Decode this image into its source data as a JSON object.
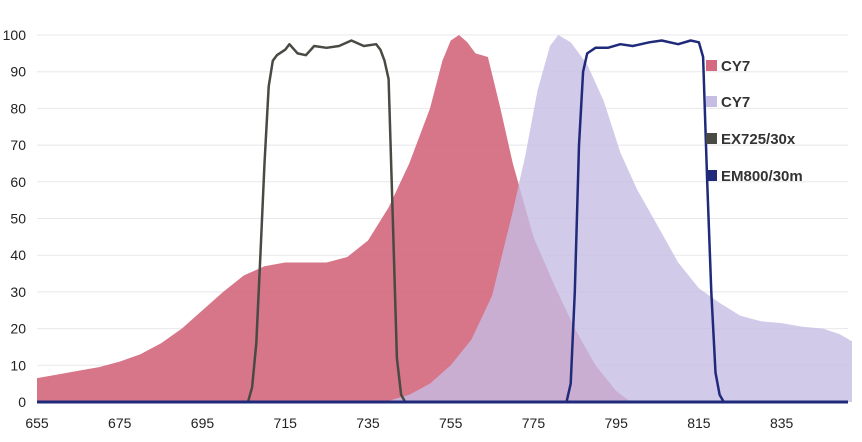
{
  "chart_data": {
    "type": "area",
    "title": "",
    "xlabel": "",
    "ylabel": "",
    "xlim": [
      655,
      852
    ],
    "ylim": [
      0,
      100
    ],
    "x_ticks": [
      655,
      675,
      695,
      715,
      735,
      755,
      775,
      795,
      815,
      835
    ],
    "y_ticks": [
      0,
      10,
      20,
      30,
      40,
      50,
      60,
      70,
      80,
      90,
      100
    ],
    "grid": "horizontal",
    "legend_position": "right",
    "series": [
      {
        "name": "CY7",
        "style": "filled-area",
        "color": "#d4697f",
        "points": [
          [
            655,
            6.5
          ],
          [
            660,
            7.5
          ],
          [
            665,
            8.5
          ],
          [
            670,
            9.5
          ],
          [
            675,
            11
          ],
          [
            680,
            13
          ],
          [
            685,
            16
          ],
          [
            690,
            20
          ],
          [
            695,
            25
          ],
          [
            700,
            30
          ],
          [
            705,
            34.5
          ],
          [
            710,
            37
          ],
          [
            715,
            38
          ],
          [
            720,
            38
          ],
          [
            725,
            38
          ],
          [
            730,
            39.5
          ],
          [
            735,
            44
          ],
          [
            740,
            53
          ],
          [
            745,
            65
          ],
          [
            750,
            80
          ],
          [
            753,
            93
          ],
          [
            755,
            98.5
          ],
          [
            757,
            100
          ],
          [
            759,
            98
          ],
          [
            761,
            95
          ],
          [
            764,
            94
          ],
          [
            767,
            80
          ],
          [
            770,
            65
          ],
          [
            775,
            45
          ],
          [
            780,
            32
          ],
          [
            785,
            20
          ],
          [
            790,
            10
          ],
          [
            795,
            3
          ],
          [
            798,
            0.5
          ]
        ]
      },
      {
        "name": "CY7",
        "style": "filled-area",
        "color": "#c5bde3",
        "points": [
          [
            739,
            0
          ],
          [
            745,
            2
          ],
          [
            750,
            5
          ],
          [
            755,
            10
          ],
          [
            760,
            17
          ],
          [
            765,
            29
          ],
          [
            770,
            52
          ],
          [
            773,
            67
          ],
          [
            776,
            85
          ],
          [
            779,
            97
          ],
          [
            781,
            100
          ],
          [
            784,
            98
          ],
          [
            788,
            92
          ],
          [
            792,
            82
          ],
          [
            796,
            68
          ],
          [
            800,
            58
          ],
          [
            805,
            48
          ],
          [
            810,
            38
          ],
          [
            815,
            31
          ],
          [
            820,
            27
          ],
          [
            825,
            23.5
          ],
          [
            830,
            22
          ],
          [
            835,
            21.5
          ],
          [
            840,
            20.5
          ],
          [
            845,
            20
          ],
          [
            849,
            18.5
          ],
          [
            852,
            16.5
          ]
        ]
      },
      {
        "name": "EX725/30x",
        "style": "line",
        "color": "#4a4a44",
        "points": [
          [
            706,
            0
          ],
          [
            707,
            4
          ],
          [
            708,
            16
          ],
          [
            709,
            40
          ],
          [
            710,
            65
          ],
          [
            711,
            86
          ],
          [
            712,
            93
          ],
          [
            713,
            94.5
          ],
          [
            715,
            96
          ],
          [
            716,
            97.5
          ],
          [
            718,
            95
          ],
          [
            720,
            94.5
          ],
          [
            722,
            97
          ],
          [
            725,
            96.5
          ],
          [
            728,
            97
          ],
          [
            731,
            98.5
          ],
          [
            734,
            97
          ],
          [
            737,
            97.5
          ],
          [
            738,
            96
          ],
          [
            739,
            93
          ],
          [
            740,
            88
          ],
          [
            741,
            50
          ],
          [
            742,
            12
          ],
          [
            743,
            2
          ],
          [
            744,
            0
          ]
        ]
      },
      {
        "name": "EM800/30m",
        "style": "line",
        "color": "#1f2a7a",
        "points": [
          [
            783,
            0
          ],
          [
            784,
            5
          ],
          [
            785,
            30
          ],
          [
            786,
            70
          ],
          [
            787,
            90
          ],
          [
            788,
            95
          ],
          [
            790,
            96.5
          ],
          [
            793,
            96.5
          ],
          [
            796,
            97.5
          ],
          [
            799,
            97
          ],
          [
            803,
            98
          ],
          [
            806,
            98.5
          ],
          [
            810,
            97.5
          ],
          [
            813,
            98.5
          ],
          [
            815,
            98
          ],
          [
            816,
            94
          ],
          [
            817,
            60
          ],
          [
            818,
            30
          ],
          [
            819,
            8
          ],
          [
            820,
            2
          ],
          [
            821,
            0
          ]
        ]
      }
    ]
  }
}
